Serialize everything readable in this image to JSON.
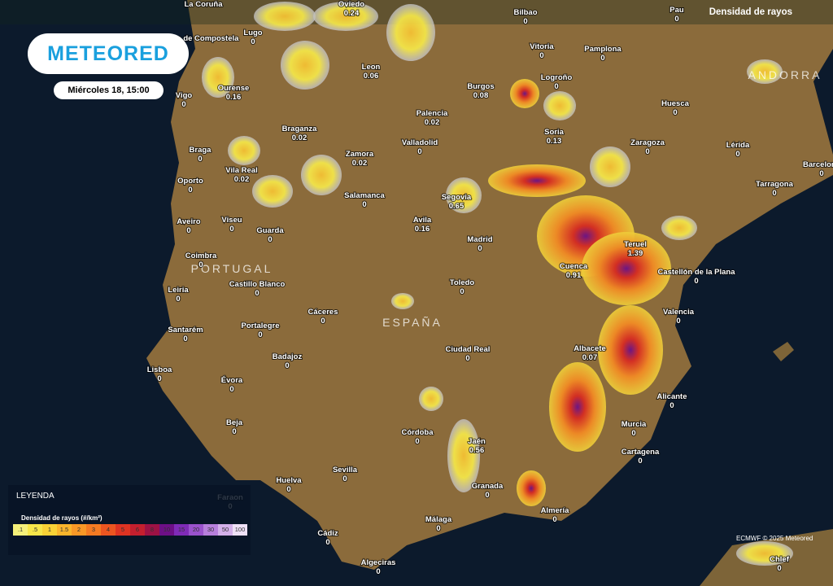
{
  "header": {
    "logo": "METEORED",
    "timestamp": "Miércoles 18, 15:00",
    "layer": "Densidad de rayos"
  },
  "regions": [
    "PORTUGAL",
    "ESPAÑA",
    "ANDORRA"
  ],
  "cities": [
    {
      "name": "La Coruña"
    },
    {
      "name": "Oviedo",
      "value": 0.24
    },
    {
      "name": "Bilbao",
      "value": 0
    },
    {
      "name": "Pau",
      "value": 0
    },
    {
      "name": "Lugo",
      "value": 0
    },
    {
      "name": "Santiago de Compostela"
    },
    {
      "name": "Vitoria",
      "value": 0
    },
    {
      "name": "Pamplona",
      "value": 0
    },
    {
      "name": "Leon",
      "value": 0.06
    },
    {
      "name": "Ourense",
      "value": 0.16
    },
    {
      "name": "Vigo",
      "value": 0
    },
    {
      "name": "Burgos",
      "value": 0.08
    },
    {
      "name": "Logroño",
      "value": 0
    },
    {
      "name": "Huesca",
      "value": 0
    },
    {
      "name": "Palencia",
      "value": 0.02
    },
    {
      "name": "Braganza",
      "value": 0.02
    },
    {
      "name": "Soria",
      "value": 0.13
    },
    {
      "name": "Zaragoza",
      "value": 0
    },
    {
      "name": "Lérida",
      "value": 0
    },
    {
      "name": "Braga",
      "value": 0
    },
    {
      "name": "Valladolid",
      "value": 0
    },
    {
      "name": "Zamora",
      "value": 0.02
    },
    {
      "name": "Vila Real",
      "value": 0.02
    },
    {
      "name": "Barcelona",
      "value": 0
    },
    {
      "name": "Tarragona",
      "value": 0
    },
    {
      "name": "Oporto",
      "value": 0
    },
    {
      "name": "Salamanca",
      "value": 0
    },
    {
      "name": "Segovia",
      "value": 0.65
    },
    {
      "name": "Aveiro",
      "value": 0
    },
    {
      "name": "Viseu",
      "value": 0
    },
    {
      "name": "Guarda",
      "value": 0
    },
    {
      "name": "Avila",
      "value": 0.16
    },
    {
      "name": "Madrid",
      "value": 0
    },
    {
      "name": "Teruel",
      "value": 1.39
    },
    {
      "name": "Coimbra",
      "value": 0
    },
    {
      "name": "Cuenca",
      "value": 0.91
    },
    {
      "name": "Castellón de la Plana",
      "value": 0
    },
    {
      "name": "Castillo Blanco",
      "value": 0
    },
    {
      "name": "Toledo",
      "value": 0
    },
    {
      "name": "Leiria",
      "value": 0
    },
    {
      "name": "Valencia",
      "value": 0
    },
    {
      "name": "Cáceres",
      "value": 0
    },
    {
      "name": "Portalegre",
      "value": 0
    },
    {
      "name": "Santarém",
      "value": 0
    },
    {
      "name": "Ciudad Real",
      "value": 0
    },
    {
      "name": "Albacete",
      "value": 0.07
    },
    {
      "name": "Badajoz",
      "value": 0
    },
    {
      "name": "Lisboa",
      "value": 0
    },
    {
      "name": "Évora",
      "value": 0
    },
    {
      "name": "Alicante",
      "value": 0
    },
    {
      "name": "Beja",
      "value": 0
    },
    {
      "name": "Murcia",
      "value": 0
    },
    {
      "name": "Córdoba",
      "value": 0
    },
    {
      "name": "Jaén",
      "value": 0.56
    },
    {
      "name": "Cartagena",
      "value": 0
    },
    {
      "name": "Sevilla",
      "value": 0
    },
    {
      "name": "Huelva",
      "value": 0
    },
    {
      "name": "Granada",
      "value": 0
    },
    {
      "name": "Faraon",
      "value": 0
    },
    {
      "name": "Almería",
      "value": 0
    },
    {
      "name": "Málaga",
      "value": 0
    },
    {
      "name": "Cádiz",
      "value": 0
    },
    {
      "name": "Algeciras",
      "value": 0
    },
    {
      "name": "Chlef",
      "value": 0
    }
  ],
  "legend": {
    "title": "LEYENDA",
    "subtitle": "Densidad de rayos (#/km²)",
    "items": [
      {
        "label": ".1",
        "color": "#f5f07a"
      },
      {
        "label": ".5",
        "color": "#f7e64a"
      },
      {
        "label": "1",
        "color": "#f9d236"
      },
      {
        "label": "1.5",
        "color": "#fab52c"
      },
      {
        "label": "2",
        "color": "#f99826"
      },
      {
        "label": "3",
        "color": "#f47a22"
      },
      {
        "label": "4",
        "color": "#ec5520"
      },
      {
        "label": "5",
        "color": "#de3322"
      },
      {
        "label": "6",
        "color": "#c41f2e"
      },
      {
        "label": "8",
        "color": "#9d1244"
      },
      {
        "label": "10",
        "color": "#6d0f86"
      },
      {
        "label": "15",
        "color": "#7f2bb7"
      },
      {
        "label": "20",
        "color": "#9a52cc"
      },
      {
        "label": "30",
        "color": "#b77fdc"
      },
      {
        "label": "50",
        "color": "#d3afe9"
      },
      {
        "label": "100",
        "color": "#eee0f6"
      }
    ]
  },
  "credit": "ECMWF © 2025 Meteored"
}
